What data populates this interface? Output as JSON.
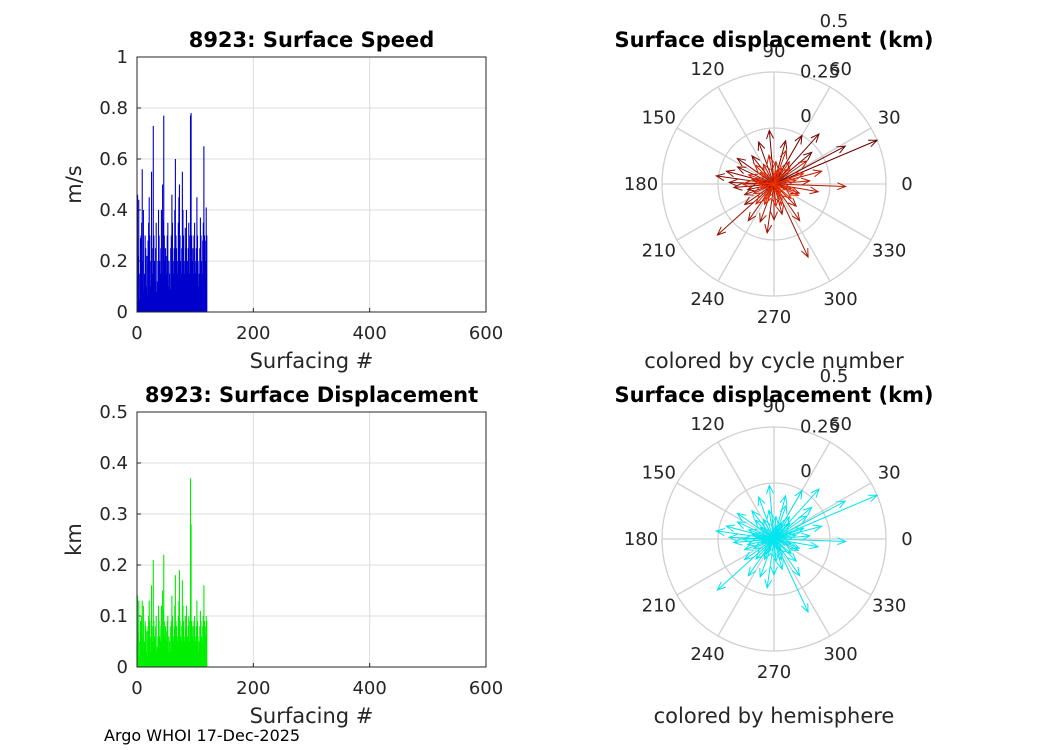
{
  "figure": {
    "footer": "Argo WHOI 17-Dec-2025"
  },
  "chart_data": [
    {
      "id": "speed",
      "type": "bar",
      "title": "8923: Surface Speed",
      "xlabel": "Surfacing #",
      "ylabel": "m/s",
      "xlim": [
        0,
        600
      ],
      "ylim": [
        0,
        1
      ],
      "xticks": [
        "0",
        "200",
        "400",
        "600"
      ],
      "yticks": [
        "0",
        "0.2",
        "0.4",
        "0.6",
        "0.8",
        "1"
      ],
      "grid": true,
      "color": "#0000cc",
      "x_start": 1,
      "values": [
        0.46,
        0.22,
        0.44,
        0.15,
        0.05,
        0.29,
        0.3,
        0.35,
        0.56,
        0.2,
        0.4,
        0.08,
        0.15,
        0.3,
        0.25,
        0.1,
        0.22,
        0.07,
        0.28,
        0.35,
        0.45,
        0.3,
        0.1,
        0.2,
        0.55,
        0.25,
        0.15,
        0.73,
        0.3,
        0.2,
        0.12,
        0.25,
        0.35,
        0.08,
        0.12,
        0.2,
        0.4,
        0.3,
        0.2,
        0.15,
        0.25,
        0.4,
        0.15,
        0.5,
        0.36,
        0.77,
        0.3,
        0.2,
        0.25,
        0.15,
        0.22,
        0.3,
        0.35,
        0.1,
        0.2,
        0.15,
        0.09,
        0.25,
        0.3,
        0.46,
        0.35,
        0.2,
        0.15,
        0.25,
        0.4,
        0.6,
        0.3,
        0.25,
        0.15,
        0.2,
        0.35,
        0.45,
        0.5,
        0.3,
        0.2,
        0.15,
        0.25,
        0.55,
        0.4,
        0.3,
        0.2,
        0.15,
        0.33,
        0.25,
        0.4,
        0.15,
        0.2,
        0.25,
        0.35,
        0.15,
        0.3,
        0.77,
        0.78,
        0.3,
        0.2,
        0.25,
        0.15,
        0.3,
        0.35,
        0.2,
        0.15,
        0.25,
        0.45,
        0.3,
        0.2,
        0.1,
        0.15,
        0.25,
        0.37,
        0.3,
        0.2,
        0.15,
        0.28,
        0.35,
        0.65,
        0.3,
        0.28,
        0.2,
        0.41,
        0.3
      ]
    },
    {
      "id": "displacement",
      "type": "bar",
      "title": "8923: Surface Displacement",
      "xlabel": "Surfacing #",
      "ylabel": "km",
      "xlim": [
        0,
        600
      ],
      "ylim": [
        0,
        0.5
      ],
      "xticks": [
        "0",
        "200",
        "400",
        "600"
      ],
      "yticks": [
        "0",
        "0.1",
        "0.2",
        "0.3",
        "0.4",
        "0.5"
      ],
      "grid": true,
      "color": "#00ee00",
      "x_start": 1,
      "values": [
        0.14,
        0.07,
        0.13,
        0.05,
        0.02,
        0.09,
        0.09,
        0.1,
        0.13,
        0.06,
        0.12,
        0.03,
        0.05,
        0.09,
        0.08,
        0.03,
        0.07,
        0.02,
        0.08,
        0.1,
        0.13,
        0.09,
        0.03,
        0.06,
        0.16,
        0.08,
        0.05,
        0.21,
        0.09,
        0.06,
        0.04,
        0.08,
        0.1,
        0.03,
        0.04,
        0.06,
        0.12,
        0.09,
        0.06,
        0.05,
        0.08,
        0.12,
        0.05,
        0.15,
        0.11,
        0.22,
        0.09,
        0.06,
        0.08,
        0.05,
        0.07,
        0.09,
        0.1,
        0.03,
        0.06,
        0.05,
        0.03,
        0.08,
        0.09,
        0.14,
        0.1,
        0.06,
        0.05,
        0.08,
        0.12,
        0.18,
        0.09,
        0.08,
        0.05,
        0.06,
        0.1,
        0.13,
        0.19,
        0.09,
        0.06,
        0.05,
        0.08,
        0.17,
        0.12,
        0.09,
        0.06,
        0.05,
        0.1,
        0.08,
        0.12,
        0.05,
        0.06,
        0.08,
        0.1,
        0.05,
        0.09,
        0.37,
        0.28,
        0.09,
        0.06,
        0.08,
        0.05,
        0.09,
        0.1,
        0.06,
        0.05,
        0.08,
        0.13,
        0.09,
        0.06,
        0.03,
        0.05,
        0.08,
        0.11,
        0.09,
        0.06,
        0.05,
        0.08,
        0.1,
        0.16,
        0.09,
        0.08,
        0.06,
        0.1,
        0.09
      ]
    },
    {
      "id": "polar-cycle",
      "type": "polar-vectors",
      "title": "Surface displacement (km)",
      "caption": "colored by cycle number",
      "r_ticks": [
        "0",
        "0.25",
        "0.5"
      ],
      "angle_ticks": [
        "0",
        "30",
        "60",
        "90",
        "120",
        "150",
        "180",
        "210",
        "240",
        "270",
        "300",
        "330"
      ],
      "color_mode": "cycle",
      "color_start": "#6a0000",
      "color_end": "#ff3300",
      "vectors": [
        [
          23,
          0.5
        ],
        [
          28,
          0.36
        ],
        [
          40,
          0.22
        ],
        [
          48,
          0.3
        ],
        [
          60,
          0.25
        ],
        [
          75,
          0.2
        ],
        [
          95,
          0.24
        ],
        [
          110,
          0.2
        ],
        [
          128,
          0.16
        ],
        [
          145,
          0.2
        ],
        [
          155,
          0.18
        ],
        [
          165,
          0.22
        ],
        [
          172,
          0.26
        ],
        [
          178,
          0.2
        ],
        [
          185,
          0.18
        ],
        [
          192,
          0.12
        ],
        [
          200,
          0.14
        ],
        [
          215,
          0.16
        ],
        [
          222,
          0.34
        ],
        [
          235,
          0.2
        ],
        [
          250,
          0.18
        ],
        [
          262,
          0.22
        ],
        [
          270,
          0.16
        ],
        [
          285,
          0.14
        ],
        [
          295,
          0.36
        ],
        [
          305,
          0.2
        ],
        [
          315,
          0.14
        ],
        [
          340,
          0.12
        ],
        [
          350,
          0.2
        ],
        [
          358,
          0.32
        ],
        [
          5,
          0.16
        ],
        [
          15,
          0.22
        ],
        [
          35,
          0.18
        ],
        [
          55,
          0.12
        ],
        [
          70,
          0.16
        ],
        [
          85,
          0.1
        ],
        [
          100,
          0.13
        ],
        [
          118,
          0.1
        ],
        [
          135,
          0.12
        ],
        [
          160,
          0.12
        ],
        [
          168,
          0.1
        ],
        [
          180,
          0.14
        ],
        [
          205,
          0.1
        ],
        [
          228,
          0.12
        ],
        [
          245,
          0.1
        ],
        [
          275,
          0.1
        ],
        [
          290,
          0.1
        ],
        [
          320,
          0.1
        ],
        [
          335,
          0.12
        ],
        [
          345,
          0.08
        ],
        [
          10,
          0.1
        ],
        [
          20,
          0.14
        ],
        [
          45,
          0.1
        ],
        [
          65,
          0.08
        ],
        [
          80,
          0.06
        ],
        [
          140,
          0.08
        ],
        [
          175,
          0.08
        ],
        [
          195,
          0.06
        ],
        [
          240,
          0.08
        ],
        [
          300,
          0.06
        ]
      ]
    },
    {
      "id": "polar-hemisphere",
      "type": "polar-vectors",
      "title": "Surface displacement (km)",
      "caption": "colored by hemisphere",
      "r_ticks": [
        "0",
        "0.25",
        "0.5"
      ],
      "angle_ticks": [
        "0",
        "30",
        "60",
        "90",
        "120",
        "150",
        "180",
        "210",
        "240",
        "270",
        "300",
        "330"
      ],
      "color_mode": "solid",
      "color": "#00e5ee",
      "vectors": [
        [
          23,
          0.5
        ],
        [
          28,
          0.36
        ],
        [
          40,
          0.22
        ],
        [
          48,
          0.3
        ],
        [
          60,
          0.25
        ],
        [
          75,
          0.2
        ],
        [
          95,
          0.24
        ],
        [
          110,
          0.2
        ],
        [
          128,
          0.16
        ],
        [
          145,
          0.2
        ],
        [
          155,
          0.18
        ],
        [
          165,
          0.22
        ],
        [
          172,
          0.26
        ],
        [
          178,
          0.2
        ],
        [
          185,
          0.18
        ],
        [
          192,
          0.12
        ],
        [
          200,
          0.14
        ],
        [
          215,
          0.16
        ],
        [
          222,
          0.34
        ],
        [
          235,
          0.2
        ],
        [
          250,
          0.18
        ],
        [
          262,
          0.22
        ],
        [
          270,
          0.16
        ],
        [
          285,
          0.14
        ],
        [
          295,
          0.36
        ],
        [
          305,
          0.2
        ],
        [
          315,
          0.14
        ],
        [
          340,
          0.12
        ],
        [
          350,
          0.2
        ],
        [
          358,
          0.32
        ],
        [
          5,
          0.16
        ],
        [
          15,
          0.22
        ],
        [
          35,
          0.18
        ],
        [
          55,
          0.12
        ],
        [
          70,
          0.16
        ],
        [
          85,
          0.1
        ],
        [
          100,
          0.13
        ],
        [
          118,
          0.1
        ],
        [
          135,
          0.12
        ],
        [
          160,
          0.12
        ],
        [
          168,
          0.1
        ],
        [
          180,
          0.14
        ],
        [
          205,
          0.1
        ],
        [
          228,
          0.12
        ],
        [
          245,
          0.1
        ],
        [
          275,
          0.1
        ],
        [
          290,
          0.1
        ],
        [
          320,
          0.1
        ],
        [
          335,
          0.12
        ],
        [
          345,
          0.08
        ],
        [
          10,
          0.1
        ],
        [
          20,
          0.14
        ],
        [
          45,
          0.1
        ],
        [
          65,
          0.08
        ],
        [
          80,
          0.06
        ],
        [
          140,
          0.08
        ],
        [
          175,
          0.08
        ],
        [
          195,
          0.06
        ],
        [
          240,
          0.08
        ],
        [
          300,
          0.06
        ]
      ]
    }
  ]
}
